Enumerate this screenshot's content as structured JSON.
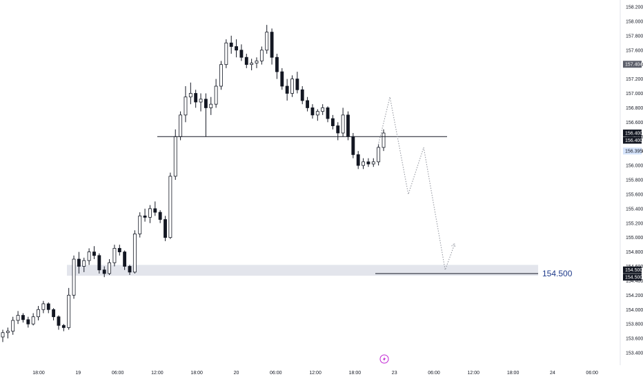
{
  "chart_data": {
    "type": "candlestick",
    "title": "",
    "ylim": [
      153.3,
      158.3
    ],
    "y_ticks": [
      "158.200",
      "158.000",
      "157.800",
      "157.600",
      "157.400",
      "157.200",
      "157.000",
      "156.800",
      "156.600",
      "156.400",
      "156.200",
      "156.000",
      "155.800",
      "155.600",
      "155.400",
      "155.200",
      "155.000",
      "154.800",
      "154.600",
      "154.400",
      "154.200",
      "154.000",
      "153.800",
      "153.600",
      "153.400"
    ],
    "x_ticks": [
      "18:00",
      "19",
      "06:00",
      "12:00",
      "18:00",
      "20",
      "06:00",
      "12:00",
      "18:00",
      "23",
      "06:00",
      "12:00",
      "18:00",
      "24",
      "06:00"
    ],
    "price_badges": [
      {
        "label": "157.404",
        "value": 157.404,
        "style": "gray"
      },
      {
        "label": "156.400",
        "value": 156.45,
        "style": "black"
      },
      {
        "label": "156.400",
        "value": 156.35,
        "style": "black"
      },
      {
        "label": "156.395",
        "value": 156.2,
        "style": "blue"
      },
      {
        "label": "154.500",
        "value": 154.55,
        "style": "black"
      },
      {
        "label": "154.500",
        "value": 154.45,
        "style": "black"
      }
    ],
    "support_line": {
      "value": 156.4
    },
    "target_line": {
      "value": 154.5,
      "label": "154.500"
    },
    "support_zone": {
      "low": 154.47,
      "high": 154.62
    },
    "projection_path": [
      {
        "t": 0.615,
        "y": 156.25
      },
      {
        "t": 0.635,
        "y": 156.95
      },
      {
        "t": 0.665,
        "y": 155.6
      },
      {
        "t": 0.69,
        "y": 156.25
      },
      {
        "t": 0.725,
        "y": 154.55
      },
      {
        "t": 0.74,
        "y": 154.9
      }
    ],
    "candles": [
      [
        153.62,
        153.72,
        153.55,
        153.68
      ],
      [
        153.68,
        153.75,
        153.6,
        153.7
      ],
      [
        153.7,
        153.9,
        153.65,
        153.85
      ],
      [
        153.85,
        153.98,
        153.8,
        153.92
      ],
      [
        153.92,
        153.95,
        153.82,
        153.86
      ],
      [
        153.86,
        153.9,
        153.75,
        153.8
      ],
      [
        153.8,
        153.95,
        153.78,
        153.9
      ],
      [
        153.9,
        154.05,
        153.85,
        154.0
      ],
      [
        154.0,
        154.12,
        153.95,
        154.08
      ],
      [
        154.08,
        154.1,
        153.95,
        154.0
      ],
      [
        154.0,
        154.02,
        153.85,
        153.9
      ],
      [
        153.9,
        153.92,
        153.72,
        153.78
      ],
      [
        153.78,
        153.8,
        153.7,
        153.75
      ],
      [
        153.75,
        154.3,
        153.72,
        154.2
      ],
      [
        154.2,
        154.75,
        154.15,
        154.7
      ],
      [
        154.7,
        154.8,
        154.5,
        154.6
      ],
      [
        154.6,
        154.72,
        154.52,
        154.68
      ],
      [
        154.68,
        154.85,
        154.62,
        154.8
      ],
      [
        154.8,
        154.88,
        154.7,
        154.75
      ],
      [
        154.75,
        154.78,
        154.5,
        154.55
      ],
      [
        154.55,
        154.6,
        154.45,
        154.5
      ],
      [
        154.5,
        154.7,
        154.48,
        154.65
      ],
      [
        154.65,
        154.9,
        154.6,
        154.85
      ],
      [
        154.85,
        154.9,
        154.75,
        154.8
      ],
      [
        154.8,
        154.82,
        154.55,
        154.6
      ],
      [
        154.6,
        154.62,
        154.48,
        154.52
      ],
      [
        154.52,
        155.1,
        154.5,
        155.05
      ],
      [
        155.05,
        155.35,
        155.0,
        155.3
      ],
      [
        155.3,
        155.4,
        155.22,
        155.28
      ],
      [
        155.28,
        155.45,
        155.2,
        155.4
      ],
      [
        155.4,
        155.5,
        155.3,
        155.35
      ],
      [
        155.35,
        155.38,
        155.2,
        155.25
      ],
      [
        155.25,
        155.3,
        154.95,
        155.0
      ],
      [
        155.0,
        155.9,
        154.98,
        155.85
      ],
      [
        155.85,
        156.5,
        155.8,
        156.4
      ],
      [
        156.4,
        156.75,
        156.35,
        156.7
      ],
      [
        156.7,
        157.1,
        156.6,
        156.95
      ],
      [
        156.95,
        157.15,
        156.85,
        157.0
      ],
      [
        157.0,
        157.05,
        156.8,
        156.88
      ],
      [
        156.88,
        157.0,
        156.75,
        156.92
      ],
      [
        156.92,
        157.0,
        156.4,
        156.8
      ],
      [
        156.8,
        156.95,
        156.7,
        156.85
      ],
      [
        156.85,
        157.2,
        156.8,
        157.1
      ],
      [
        157.1,
        157.45,
        157.05,
        157.4
      ],
      [
        157.4,
        157.75,
        157.35,
        157.7
      ],
      [
        157.7,
        157.8,
        157.55,
        157.65
      ],
      [
        157.65,
        157.75,
        157.5,
        157.6
      ],
      [
        157.6,
        157.68,
        157.45,
        157.5
      ],
      [
        157.5,
        157.55,
        157.35,
        157.4
      ],
      [
        157.4,
        157.48,
        157.32,
        157.42
      ],
      [
        157.42,
        157.5,
        157.35,
        157.45
      ],
      [
        157.45,
        157.65,
        157.4,
        157.6
      ],
      [
        157.6,
        157.95,
        157.55,
        157.85
      ],
      [
        157.85,
        157.9,
        157.4,
        157.5
      ],
      [
        157.5,
        157.55,
        157.2,
        157.3
      ],
      [
        157.3,
        157.35,
        157.05,
        157.1
      ],
      [
        157.1,
        157.2,
        156.9,
        157.0
      ],
      [
        157.0,
        157.25,
        156.95,
        157.2
      ],
      [
        157.2,
        157.3,
        157.0,
        157.05
      ],
      [
        157.05,
        157.1,
        156.85,
        156.9
      ],
      [
        156.9,
        156.95,
        156.75,
        156.8
      ],
      [
        156.8,
        156.85,
        156.65,
        156.7
      ],
      [
        156.7,
        156.78,
        156.62,
        156.75
      ],
      [
        156.75,
        156.85,
        156.7,
        156.8
      ],
      [
        156.8,
        156.82,
        156.6,
        156.65
      ],
      [
        156.65,
        156.7,
        156.5,
        156.55
      ],
      [
        156.55,
        156.6,
        156.35,
        156.45
      ],
      [
        156.45,
        156.8,
        156.4,
        156.7
      ],
      [
        156.7,
        156.75,
        156.35,
        156.4
      ],
      [
        156.4,
        156.45,
        156.1,
        156.15
      ],
      [
        156.15,
        156.2,
        155.95,
        156.0
      ],
      [
        156.0,
        156.1,
        155.95,
        156.05
      ],
      [
        156.05,
        156.1,
        155.98,
        156.02
      ],
      [
        156.02,
        156.1,
        155.98,
        156.05
      ],
      [
        156.05,
        156.3,
        156.0,
        156.25
      ],
      [
        156.25,
        156.5,
        156.2,
        156.45
      ]
    ]
  }
}
